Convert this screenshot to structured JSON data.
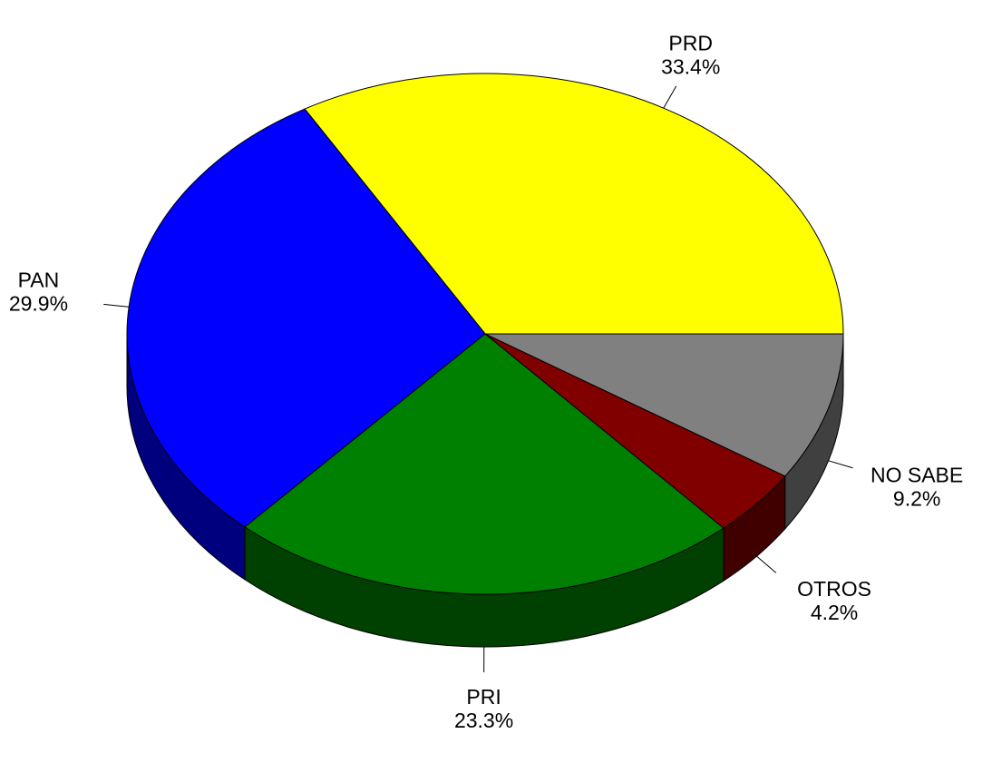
{
  "chart_data": {
    "type": "pie",
    "categories": [
      "PRD",
      "PAN",
      "PRI",
      "OTROS",
      "NO SABE"
    ],
    "values": [
      33.4,
      29.9,
      23.3,
      4.2,
      9.2
    ],
    "value_labels": [
      "33.4%",
      "29.9%",
      "23.3%",
      "4.2%",
      "9.2%"
    ],
    "colors": [
      "#ffff00",
      "#0000ff",
      "#008000",
      "#800000",
      "#808080"
    ],
    "three_d": true
  }
}
